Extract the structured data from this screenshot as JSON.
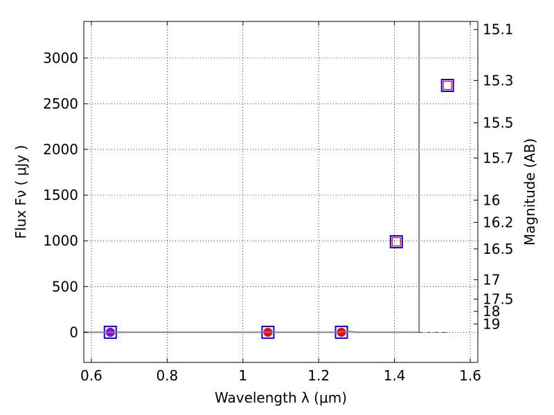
{
  "chart_data": {
    "type": "scatter",
    "title": "",
    "xlabel": "Wavelength  λ (μm)",
    "ylabel": "Flux  Fν  ( μJy )",
    "y2label": "Magnitude (AB)",
    "xlim": [
      0.58,
      1.62
    ],
    "ylim": [
      -330,
      3400
    ],
    "grid": true,
    "x_ticks": [
      {
        "value": 0.6,
        "label": "0.6"
      },
      {
        "value": 0.8,
        "label": "0.8"
      },
      {
        "value": 1.0,
        "label": "1"
      },
      {
        "value": 1.2,
        "label": "1.2"
      },
      {
        "value": 1.4,
        "label": "1.4"
      },
      {
        "value": 1.6,
        "label": "1.6"
      }
    ],
    "y_ticks": [
      {
        "value": 0,
        "label": "0"
      },
      {
        "value": 500,
        "label": "500"
      },
      {
        "value": 1000,
        "label": "1000"
      },
      {
        "value": 1500,
        "label": "1500"
      },
      {
        "value": 2000,
        "label": "2000"
      },
      {
        "value": 2500,
        "label": "2500"
      },
      {
        "value": 3000,
        "label": "3000"
      }
    ],
    "y2_ticks": [
      {
        "value": 15.1,
        "label": "15.1"
      },
      {
        "value": 15.3,
        "label": "15.3"
      },
      {
        "value": 15.5,
        "label": "15.5"
      },
      {
        "value": 15.7,
        "label": "15.7"
      },
      {
        "value": 16.0,
        "label": "16"
      },
      {
        "value": 16.2,
        "label": "16.2"
      },
      {
        "value": 16.5,
        "label": "16.5"
      },
      {
        "value": 17.0,
        "label": "17"
      },
      {
        "value": 17.5,
        "label": "17.5"
      },
      {
        "value": 18.0,
        "label": "18"
      },
      {
        "value": 19.0,
        "label": "19"
      }
    ],
    "series": [
      {
        "marker": "square-open",
        "color": "#0000ff",
        "points": [
          [
            0.65,
            0
          ],
          [
            1.066,
            0
          ],
          [
            1.26,
            0
          ],
          [
            1.405,
            990
          ],
          [
            1.54,
            2700
          ]
        ]
      },
      {
        "marker": "square-open",
        "color": "#ff0000",
        "points": [
          [
            1.405,
            990
          ],
          [
            1.54,
            2700
          ]
        ]
      },
      {
        "marker": "circle",
        "color": "#ff0000",
        "points": [
          [
            0.65,
            0
          ],
          [
            1.066,
            0
          ],
          [
            1.26,
            0
          ]
        ]
      },
      {
        "marker": "circle",
        "color": "#9400d3",
        "points": [
          [
            0.65,
            0
          ]
        ]
      },
      {
        "type": "line",
        "color": "#808080",
        "points": [
          [
            0.58,
            0
          ],
          [
            1.25,
            0
          ],
          [
            1.275,
            10
          ],
          [
            1.3,
            0
          ],
          [
            1.465,
            0
          ],
          [
            1.465,
            3400
          ]
        ]
      },
      {
        "type": "line",
        "style": "dash-dot",
        "color": "#000000",
        "points": [
          [
            1.465,
            0
          ],
          [
            1.545,
            0
          ]
        ]
      }
    ]
  }
}
